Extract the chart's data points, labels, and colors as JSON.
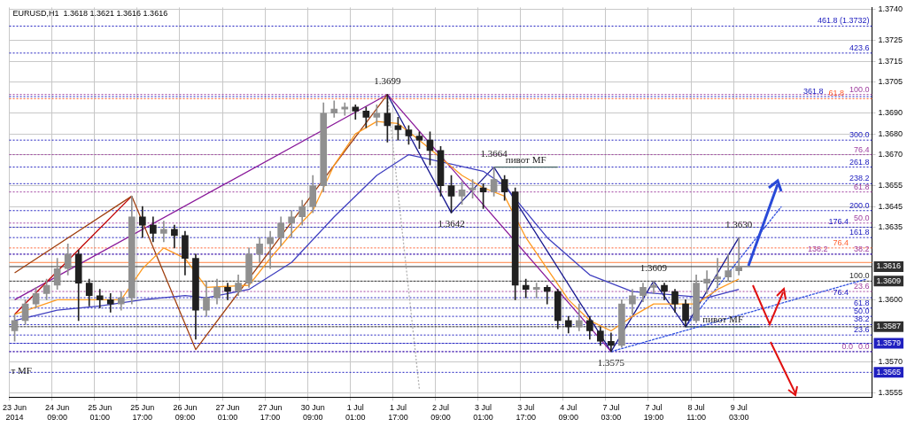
{
  "chart_data": {
    "type": "candlestick",
    "title": "EURUSD,H1  1.3618 1.3621 1.3616 1.3616",
    "categories": [
      "23 Jun 2014",
      null,
      null,
      null,
      "24 Jun 09:00",
      null,
      null,
      null,
      "25 Jun 01:00",
      null,
      null,
      null,
      "25 Jun 17:00",
      null,
      null,
      null,
      "26 Jun 09:00",
      null,
      null,
      null,
      "27 Jun 01:00",
      null,
      null,
      null,
      "27 Jun 17:00",
      null,
      null,
      null,
      "30 Jun 09:00",
      null,
      null,
      null,
      "1 Jul 01:00",
      null,
      null,
      null,
      "1 Jul 17:00",
      null,
      null,
      null,
      "2 Jul 09:00",
      null,
      null,
      null,
      "3 Jul 01:00",
      null,
      null,
      null,
      "3 Jul 17:00",
      null,
      null,
      null,
      "4 Jul 09:00",
      null,
      null,
      null,
      "7 Jul 03:00",
      null,
      null,
      null,
      "7 Jul 19:00",
      null,
      null,
      null,
      "8 Jul 11:00",
      null,
      null,
      null,
      "9 Jul 03:00",
      null,
      null,
      null,
      null,
      null,
      null,
      null,
      null,
      null,
      null,
      null,
      null
    ],
    "ohlc": [
      [
        1.3585,
        1.3593,
        1.358,
        1.359
      ],
      [
        1.359,
        1.36,
        1.3588,
        1.3598
      ],
      [
        1.3598,
        1.3606,
        1.3596,
        1.3603
      ],
      [
        1.3603,
        1.361,
        1.36,
        1.3607
      ],
      [
        1.3607,
        1.362,
        1.3605,
        1.3615
      ],
      [
        1.3615,
        1.3627,
        1.3612,
        1.3622
      ],
      [
        1.3622,
        1.3624,
        1.359,
        1.3608
      ],
      [
        1.3608,
        1.361,
        1.3597,
        1.3602
      ],
      [
        1.3602,
        1.3605,
        1.3596,
        1.36
      ],
      [
        1.36,
        1.3603,
        1.3594,
        1.3598
      ],
      [
        1.3598,
        1.3604,
        1.3595,
        1.3601
      ],
      [
        1.3601,
        1.365,
        1.3598,
        1.364
      ],
      [
        1.364,
        1.3645,
        1.363,
        1.3636
      ],
      [
        1.3636,
        1.364,
        1.3628,
        1.3632
      ],
      [
        1.3632,
        1.3638,
        1.3628,
        1.3634
      ],
      [
        1.3634,
        1.3636,
        1.3625,
        1.3631
      ],
      [
        1.3631,
        1.3633,
        1.3612,
        1.362
      ],
      [
        1.362,
        1.3622,
        1.3581,
        1.3595
      ],
      [
        1.3595,
        1.3609,
        1.3592,
        1.3601
      ],
      [
        1.3601,
        1.361,
        1.3598,
        1.3606
      ],
      [
        1.3606,
        1.3608,
        1.36,
        1.3604
      ],
      [
        1.3604,
        1.3612,
        1.3602,
        1.3608
      ],
      [
        1.3608,
        1.3625,
        1.3606,
        1.3622
      ],
      [
        1.3622,
        1.363,
        1.3618,
        1.3627
      ],
      [
        1.3627,
        1.3633,
        1.3615,
        1.363
      ],
      [
        1.363,
        1.364,
        1.3626,
        1.3637
      ],
      [
        1.3637,
        1.3643,
        1.363,
        1.364
      ],
      [
        1.364,
        1.3648,
        1.3636,
        1.3645
      ],
      [
        1.3645,
        1.366,
        1.3642,
        1.3655
      ],
      [
        1.3655,
        1.3695,
        1.3652,
        1.369
      ],
      [
        1.369,
        1.3696,
        1.3688,
        1.3692
      ],
      [
        1.3692,
        1.3695,
        1.3689,
        1.3693
      ],
      [
        1.3693,
        1.3694,
        1.3687,
        1.3691
      ],
      [
        1.3691,
        1.3693,
        1.3683,
        1.3688
      ],
      [
        1.3688,
        1.3694,
        1.3684,
        1.369
      ],
      [
        1.369,
        1.3699,
        1.3676,
        1.3684
      ],
      [
        1.3684,
        1.3688,
        1.3677,
        1.3682
      ],
      [
        1.3682,
        1.3684,
        1.3675,
        1.3679
      ],
      [
        1.3679,
        1.3681,
        1.3673,
        1.3677
      ],
      [
        1.3677,
        1.3681,
        1.3665,
        1.3672
      ],
      [
        1.3672,
        1.3674,
        1.365,
        1.3655
      ],
      [
        1.3655,
        1.366,
        1.3642,
        1.365
      ],
      [
        1.365,
        1.3657,
        1.3646,
        1.3653
      ],
      [
        1.3653,
        1.3658,
        1.3649,
        1.3654
      ],
      [
        1.3654,
        1.3656,
        1.3644,
        1.3652
      ],
      [
        1.3652,
        1.3664,
        1.365,
        1.3658
      ],
      [
        1.3658,
        1.366,
        1.3648,
        1.3652
      ],
      [
        1.3652,
        1.3654,
        1.36,
        1.3607
      ],
      [
        1.3607,
        1.361,
        1.3601,
        1.3605
      ],
      [
        1.3605,
        1.3608,
        1.3601,
        1.3606
      ],
      [
        1.3606,
        1.3607,
        1.3598,
        1.3604
      ],
      [
        1.3604,
        1.3605,
        1.3586,
        1.359
      ],
      [
        1.359,
        1.3592,
        1.3584,
        1.3587
      ],
      [
        1.3587,
        1.3598,
        1.3585,
        1.359
      ],
      [
        1.359,
        1.3592,
        1.3581,
        1.3585
      ],
      [
        1.3585,
        1.3587,
        1.3578,
        1.358
      ],
      [
        1.358,
        1.3584,
        1.3575,
        1.3578
      ],
      [
        1.3578,
        1.36,
        1.3577,
        1.3598
      ],
      [
        1.3598,
        1.3605,
        1.3593,
        1.3602
      ],
      [
        1.3602,
        1.3608,
        1.3599,
        1.3606
      ],
      [
        1.3606,
        1.3609,
        1.3603,
        1.3607
      ],
      [
        1.3607,
        1.3608,
        1.36,
        1.3604
      ],
      [
        1.3604,
        1.3605,
        1.3594,
        1.3598
      ],
      [
        1.3598,
        1.36,
        1.3587,
        1.359
      ],
      [
        1.359,
        1.3612,
        1.3589,
        1.3608
      ],
      [
        1.3608,
        1.3614,
        1.3603,
        1.361
      ],
      [
        1.361,
        1.362,
        1.3606,
        1.3611
      ],
      [
        1.3611,
        1.3622,
        1.3609,
        1.3614
      ],
      [
        1.3614,
        1.363,
        1.3612,
        1.3616
      ],
      null,
      null,
      null,
      null,
      null,
      null,
      null,
      null,
      null,
      null,
      null,
      null
    ],
    "colors": [
      "#909090",
      "#909090",
      "#909090",
      "#909090",
      "#909090",
      "#909090",
      "#202020",
      "#202020",
      "#202020",
      "#202020",
      "#909090",
      "#909090",
      "#202020",
      "#202020",
      "#909090",
      "#202020",
      "#202020",
      "#202020",
      "#909090",
      "#909090",
      "#202020",
      "#909090",
      "#909090",
      "#909090",
      "#909090",
      "#909090",
      "#909090",
      "#909090",
      "#909090",
      "#909090",
      "#909090",
      "#909090",
      "#202020",
      "#202020",
      "#909090",
      "#202020",
      "#202020",
      "#202020",
      "#202020",
      "#202020",
      "#202020",
      "#202020",
      "#909090",
      "#909090",
      "#202020",
      "#909090",
      "#202020",
      "#202020",
      "#202020",
      "#909090",
      "#202020",
      "#202020",
      "#202020",
      "#909090",
      "#202020",
      "#202020",
      "#202020",
      "#909090",
      "#909090",
      "#909090",
      "#909090",
      "#202020",
      "#202020",
      "#202020",
      "#909090",
      "#909090",
      "#909090",
      "#909090",
      "#909090",
      null,
      null,
      null,
      null,
      null,
      null,
      null,
      null,
      null,
      null,
      null,
      null
    ],
    "series": [
      {
        "type": "line",
        "color": "#ff9a20",
        "line_style": "solid",
        "values": [
          1.3593,
          null,
          null,
          null,
          1.36,
          null,
          null,
          null,
          null,
          null,
          1.36,
          null,
          1.3615,
          null,
          1.3625,
          null,
          1.362,
          null,
          1.3606,
          null,
          null,
          null,
          1.3607,
          null,
          1.362,
          null,
          1.3632,
          null,
          1.3643,
          null,
          1.3665,
          null,
          1.368,
          null,
          1.3686,
          null,
          1.3685,
          null,
          1.3677,
          null,
          null,
          null,
          1.366,
          null,
          1.3654,
          null,
          1.365,
          null,
          1.363,
          null,
          1.3615,
          null,
          1.36,
          null,
          1.359,
          null,
          1.3585,
          null,
          1.3592,
          null,
          1.3598,
          null,
          null,
          null,
          1.3598,
          null,
          1.3605,
          null,
          1.361,
          null,
          null,
          null,
          null,
          null,
          null,
          null,
          null,
          null,
          null,
          null,
          null
        ]
      },
      {
        "type": "line",
        "color": "#4040c0",
        "line_style": "solid",
        "values": [
          1.359,
          null,
          null,
          null,
          1.3595,
          null,
          null,
          null,
          1.3597,
          null,
          null,
          null,
          1.36,
          null,
          null,
          null,
          1.3602,
          null,
          1.3601,
          null,
          null,
          null,
          1.3605,
          null,
          null,
          null,
          1.3618,
          null,
          null,
          null,
          1.364,
          null,
          null,
          null,
          1.366,
          null,
          null,
          1.367,
          null,
          null,
          null,
          null,
          null,
          null,
          1.3662,
          null,
          1.3655,
          null,
          null,
          null,
          1.363,
          null,
          null,
          null,
          1.3612,
          null,
          null,
          null,
          1.3604,
          null,
          null,
          null,
          null,
          null,
          null,
          1.3601,
          null,
          null,
          1.3605,
          null,
          null,
          null,
          null,
          null,
          null,
          null,
          null,
          null,
          null,
          null,
          null
        ]
      },
      {
        "type": "line",
        "color": "#a04010",
        "line_style": "solid",
        "values": [
          1.3613,
          null,
          null,
          null,
          null,
          null,
          null,
          null,
          null,
          null,
          null,
          1.365,
          null,
          null,
          null,
          null,
          null,
          1.3576,
          null,
          null,
          null,
          null,
          null,
          null,
          null,
          null,
          null,
          null,
          null,
          null,
          null,
          null,
          null,
          null,
          null,
          1.3699,
          null,
          null,
          null,
          null,
          null,
          null,
          null,
          null,
          null,
          null,
          null,
          null,
          null,
          null,
          null,
          null,
          null,
          null,
          null,
          null,
          null,
          null,
          null,
          null,
          null,
          null,
          null,
          null,
          null,
          null,
          null,
          null,
          null,
          null,
          null,
          null,
          null,
          null,
          null,
          null,
          null,
          null,
          null,
          null,
          null
        ]
      },
      {
        "type": "line",
        "color": "#c00000",
        "line_style": "solid",
        "values": [
          1.3593,
          null,
          null,
          null,
          null,
          null,
          null,
          null,
          null,
          null,
          null,
          1.365,
          null,
          null,
          null,
          null,
          null,
          null,
          null,
          null,
          null,
          null,
          null,
          null,
          null,
          null,
          null,
          null,
          null,
          null,
          null,
          null,
          null,
          null,
          null,
          null,
          null,
          null,
          null,
          null,
          null,
          null,
          null,
          null,
          null,
          null,
          null,
          null,
          null,
          null,
          null,
          null,
          null,
          null,
          null,
          null,
          null,
          null,
          null,
          null,
          null,
          null,
          null,
          null,
          null,
          null,
          null,
          null,
          null,
          null,
          null,
          null,
          null,
          null,
          null,
          null,
          null,
          null,
          null,
          null,
          null
        ]
      },
      {
        "type": "line",
        "color": "#8a1a9a",
        "line_style": "solid",
        "values": [
          1.36,
          null,
          null,
          null,
          null,
          null,
          null,
          null,
          null,
          null,
          null,
          null,
          null,
          null,
          null,
          null,
          null,
          null,
          null,
          null,
          null,
          null,
          null,
          null,
          null,
          null,
          null,
          null,
          null,
          null,
          null,
          null,
          null,
          null,
          null,
          1.3699,
          null,
          null,
          null,
          null,
          null,
          null,
          null,
          null,
          null,
          null,
          null,
          null,
          null,
          null,
          null,
          null,
          null,
          null,
          null,
          null,
          1.3575,
          null,
          null,
          null,
          null,
          null,
          null,
          null,
          null,
          null,
          null,
          null,
          null,
          null,
          null,
          null,
          null,
          null,
          null,
          null,
          null,
          null,
          null,
          null,
          null
        ]
      },
      {
        "type": "line",
        "color": "#1a1a90",
        "line_style": "solid",
        "values": [
          null,
          null,
          null,
          null,
          null,
          null,
          null,
          null,
          null,
          null,
          null,
          null,
          null,
          null,
          null,
          null,
          null,
          null,
          null,
          null,
          null,
          null,
          null,
          null,
          null,
          null,
          null,
          null,
          null,
          null,
          null,
          null,
          null,
          null,
          null,
          1.3699,
          null,
          null,
          null,
          null,
          null,
          1.3642,
          null,
          null,
          null,
          1.3664,
          null,
          null,
          null,
          null,
          null,
          null,
          null,
          null,
          null,
          null,
          1.3575,
          null,
          null,
          null,
          1.3609,
          null,
          null,
          1.3587,
          null,
          null,
          null,
          null,
          1.363,
          null,
          null,
          null,
          null,
          null,
          null,
          null,
          null,
          null,
          null,
          null,
          null
        ]
      },
      {
        "type": "line",
        "color": "#3050e0",
        "line_style": "dashed",
        "values": [
          null,
          null,
          null,
          null,
          null,
          null,
          null,
          null,
          null,
          null,
          null,
          null,
          null,
          null,
          null,
          null,
          null,
          null,
          null,
          null,
          null,
          null,
          null,
          null,
          null,
          null,
          null,
          null,
          null,
          null,
          null,
          null,
          null,
          null,
          null,
          null,
          null,
          null,
          null,
          null,
          null,
          null,
          null,
          null,
          null,
          null,
          null,
          null,
          null,
          null,
          null,
          null,
          null,
          null,
          null,
          null,
          1.3575,
          null,
          null,
          null,
          null,
          null,
          null,
          null,
          null,
          null,
          null,
          null,
          null,
          null,
          null,
          null,
          null,
          null,
          null,
          null,
          null,
          null,
          null,
          null,
          1.361
        ]
      },
      {
        "type": "line",
        "color": "#3050e0",
        "line_style": "dashed",
        "values": [
          null,
          null,
          null,
          null,
          null,
          null,
          null,
          null,
          null,
          null,
          null,
          null,
          null,
          null,
          null,
          null,
          null,
          null,
          null,
          null,
          null,
          null,
          null,
          null,
          null,
          null,
          null,
          null,
          null,
          null,
          null,
          null,
          null,
          null,
          null,
          null,
          null,
          null,
          null,
          null,
          null,
          null,
          null,
          null,
          null,
          null,
          null,
          null,
          null,
          null,
          null,
          null,
          null,
          null,
          null,
          null,
          null,
          null,
          null,
          null,
          null,
          null,
          null,
          1.3587,
          null,
          null,
          null,
          null,
          null,
          null,
          null,
          null,
          1.3645,
          null,
          null,
          null,
          null,
          null,
          null,
          null,
          null
        ]
      },
      {
        "type": "line",
        "color": "#b0b0b0",
        "line_style": "dotted",
        "values": [
          null,
          null,
          null,
          null,
          null,
          null,
          null,
          null,
          null,
          null,
          null,
          null,
          null,
          null,
          null,
          null,
          null,
          null,
          null,
          null,
          null,
          null,
          null,
          null,
          null,
          null,
          null,
          null,
          null,
          null,
          null,
          null,
          null,
          null,
          null,
          1.3699,
          null,
          null,
          1.3557,
          null,
          null,
          null,
          null,
          null,
          null,
          null,
          null,
          null,
          null,
          null,
          null,
          null,
          null,
          null,
          null,
          null,
          null,
          null,
          null,
          null,
          null,
          null,
          null,
          null,
          null,
          null,
          null,
          null,
          null,
          null,
          null,
          null,
          null,
          null,
          null,
          null,
          null,
          null,
          null,
          null,
          null
        ]
      },
      {
        "type": "line",
        "color": "#406060",
        "line_style": "solid",
        "values": [
          null,
          null,
          null,
          null,
          null,
          null,
          null,
          null,
          null,
          null,
          null,
          null,
          null,
          null,
          null,
          null,
          null,
          null,
          null,
          null,
          null,
          null,
          null,
          null,
          null,
          null,
          null,
          null,
          null,
          null,
          null,
          null,
          null,
          null,
          null,
          null,
          null,
          null,
          null,
          null,
          null,
          null,
          null,
          null,
          null,
          1.3664,
          null,
          null,
          null,
          null,
          null,
          1.3664,
          null,
          null,
          null,
          null,
          null,
          null,
          null,
          null,
          null,
          null,
          null,
          null,
          null,
          null,
          null,
          null,
          null,
          null,
          null,
          null,
          null,
          null,
          null,
          null,
          null,
          null,
          null,
          null,
          null
        ]
      },
      {
        "type": "line",
        "color": "#406060",
        "line_style": "solid",
        "values": [
          null,
          null,
          null,
          null,
          null,
          null,
          null,
          null,
          null,
          null,
          null,
          null,
          null,
          null,
          null,
          null,
          null,
          null,
          null,
          null,
          null,
          null,
          null,
          null,
          null,
          null,
          null,
          null,
          null,
          null,
          null,
          null,
          null,
          null,
          null,
          null,
          null,
          null,
          null,
          null,
          null,
          null,
          null,
          null,
          null,
          null,
          null,
          null,
          null,
          null,
          null,
          null,
          null,
          null,
          null,
          null,
          null,
          null,
          null,
          null,
          null,
          null,
          null,
          1.3587,
          null,
          null,
          null,
          null,
          null,
          null,
          1.3587,
          null,
          null,
          null,
          null,
          null,
          null,
          null,
          null,
          null,
          null
        ]
      }
    ],
    "ylim": [
      1.3553,
      1.3741
    ],
    "yticks": [
      {
        "value": 1.374,
        "label": "1.3740"
      },
      1.3725,
      1.3715,
      1.3705,
      {
        "value": 1.369,
        "label": "1.3690"
      },
      {
        "value": 1.368,
        "label": "1.3680"
      },
      {
        "value": 1.367,
        "label": "1.3670"
      },
      1.3655,
      1.3645,
      1.3635,
      {
        "value": 1.36,
        "label": "1.3600"
      },
      {
        "value": 1.357,
        "label": "1.3570"
      },
      1.3555
    ],
    "ref_lines": [
      {
        "axis": "y",
        "value": 1.3699,
        "color": "#a040a0",
        "line_style": "dotted"
      },
      {
        "axis": "y",
        "value": 1.367,
        "color": "#a040a0",
        "line_style": "dotted"
      },
      {
        "axis": "y",
        "value": 1.3652,
        "color": "#a040a0",
        "line_style": "dotted"
      },
      {
        "axis": "y",
        "value": 1.3637,
        "color": "#a040a0",
        "line_style": "dotted"
      },
      {
        "axis": "y",
        "value": 1.3622,
        "color": "#a040a0",
        "line_style": "dotted"
      },
      {
        "axis": "y",
        "value": 1.3604,
        "color": "#a040a0",
        "line_style": "dotted"
      },
      {
        "axis": "y",
        "value": 1.3575,
        "color": "#a040a0",
        "line_style": "dotted"
      },
      {
        "axis": "y",
        "value": 1.3697,
        "color": "#ff6030",
        "line_style": "dotted"
      },
      {
        "axis": "y",
        "value": 1.3625,
        "color": "#ff6030",
        "line_style": "dotted"
      },
      {
        "axis": "y",
        "value": 1.3732,
        "color": "#2020c0",
        "line_style": "dotted"
      },
      {
        "axis": "y",
        "value": 1.3719,
        "color": "#2020c0",
        "line_style": "dotted"
      },
      {
        "axis": "y",
        "value": 1.3698,
        "color": "#2020c0",
        "line_style": "dotted"
      },
      {
        "axis": "y",
        "value": 1.3677,
        "color": "#2020c0",
        "line_style": "dotted"
      },
      {
        "axis": "y",
        "value": 1.3664,
        "color": "#2020c0",
        "line_style": "dotted"
      },
      {
        "axis": "y",
        "value": 1.3656,
        "color": "#2020c0",
        "line_style": "dotted"
      },
      {
        "axis": "y",
        "value": 1.3643,
        "color": "#2020c0",
        "line_style": "dotted"
      },
      {
        "axis": "y",
        "value": 1.3635,
        "color": "#2020c0",
        "line_style": "dotted"
      },
      {
        "axis": "y",
        "value": 1.363,
        "color": "#2020c0",
        "line_style": "dotted"
      },
      {
        "axis": "y",
        "value": 1.3622,
        "color": "#2020c0",
        "line_style": "dotted"
      },
      {
        "axis": "y",
        "value": 1.3601,
        "color": "#2020c0",
        "line_style": "dotted"
      },
      {
        "axis": "y",
        "value": 1.3596,
        "color": "#2020c0",
        "line_style": "dotted"
      },
      {
        "axis": "y",
        "value": 1.3592,
        "color": "#2020c0",
        "line_style": "dotted"
      },
      {
        "axis": "y",
        "value": 1.3588,
        "color": "#2020c0",
        "line_style": "dotted"
      },
      {
        "axis": "y",
        "value": 1.3583,
        "color": "#2020c0",
        "line_style": "dotted"
      },
      {
        "axis": "y",
        "value": 1.3575,
        "color": "#2020c0",
        "line_style": "dotted"
      },
      {
        "axis": "y",
        "value": 1.3618,
        "color": "#ff8040",
        "line_style": "solid"
      },
      {
        "axis": "y",
        "value": 1.3616,
        "label": "1.3616",
        "color": "#303030",
        "line_style": "solid"
      },
      {
        "axis": "y",
        "value": 1.3609,
        "label": "1.3609",
        "color": "#303030",
        "line_style": "dashed"
      },
      {
        "axis": "y",
        "value": 1.3587,
        "label": "1.3587",
        "color": "#303030",
        "line_style": "dashed"
      },
      {
        "axis": "y",
        "value": 1.3579,
        "label": "1.3579",
        "color": "#2020c0",
        "line_style": "dashed"
      },
      {
        "axis": "y",
        "value": 1.3565,
        "label": "1.3565",
        "color": "#2020c0",
        "line_style": "dotted"
      }
    ],
    "annotations": [
      {
        "text": "пивот MF",
        "y": 1.3664
      },
      {
        "text": "пивот MF",
        "y": 1.3587
      },
      {
        "text": "1.3699",
        "y": 1.3699
      },
      {
        "text": "1.3664",
        "y": 1.3664
      },
      {
        "text": "1.3642",
        "y": 1.3642
      },
      {
        "text": "1.3575",
        "y": 1.3575
      },
      {
        "text": "1.3609",
        "y": 1.3609
      },
      {
        "text": "1.3630",
        "y": 1.363
      },
      {
        "text": "100.0",
        "y": 1.3699
      },
      {
        "text": "76.4",
        "y": 1.367
      },
      {
        "text": "61.8",
        "y": 1.3652
      },
      {
        "text": "50.0",
        "y": 1.3637
      },
      {
        "text": "38.2",
        "y": 1.3622
      },
      {
        "text": "23.6",
        "y": 1.3604
      },
      {
        "text": "0.0",
        "y": 1.3575
      },
      {
        "text": "61.8",
        "y": 1.3697
      },
      {
        "text": "76.4",
        "y": 1.3625
      },
      {
        "text": "461.8 (1.3732)",
        "y": 1.3732
      },
      {
        "text": "423.6",
        "y": 1.3719
      },
      {
        "text": "361.8",
        "y": 1.3698
      },
      {
        "text": "300.0",
        "y": 1.3677
      },
      {
        "text": "261.8",
        "y": 1.3664
      },
      {
        "text": "238.2",
        "y": 1.3656
      },
      {
        "text": "200.0",
        "y": 1.3643
      },
      {
        "text": "176.4",
        "y": 1.3635
      },
      {
        "text": "161.8",
        "y": 1.363
      },
      {
        "text": "138.2",
        "y": 1.3622
      },
      {
        "text": "100.0",
        "y": 1.3609
      },
      {
        "text": "76.4",
        "y": 1.3601
      },
      {
        "text": "61.8",
        "y": 1.3596
      },
      {
        "text": "50.0",
        "y": 1.3592
      },
      {
        "text": "38.2",
        "y": 1.3588
      },
      {
        "text": "23.6",
        "y": 1.3583
      },
      {
        "text": "0.0",
        "y": 1.3575
      },
      "т MF"
    ],
    "grid": true,
    "legend": false,
    "marker": "none"
  }
}
